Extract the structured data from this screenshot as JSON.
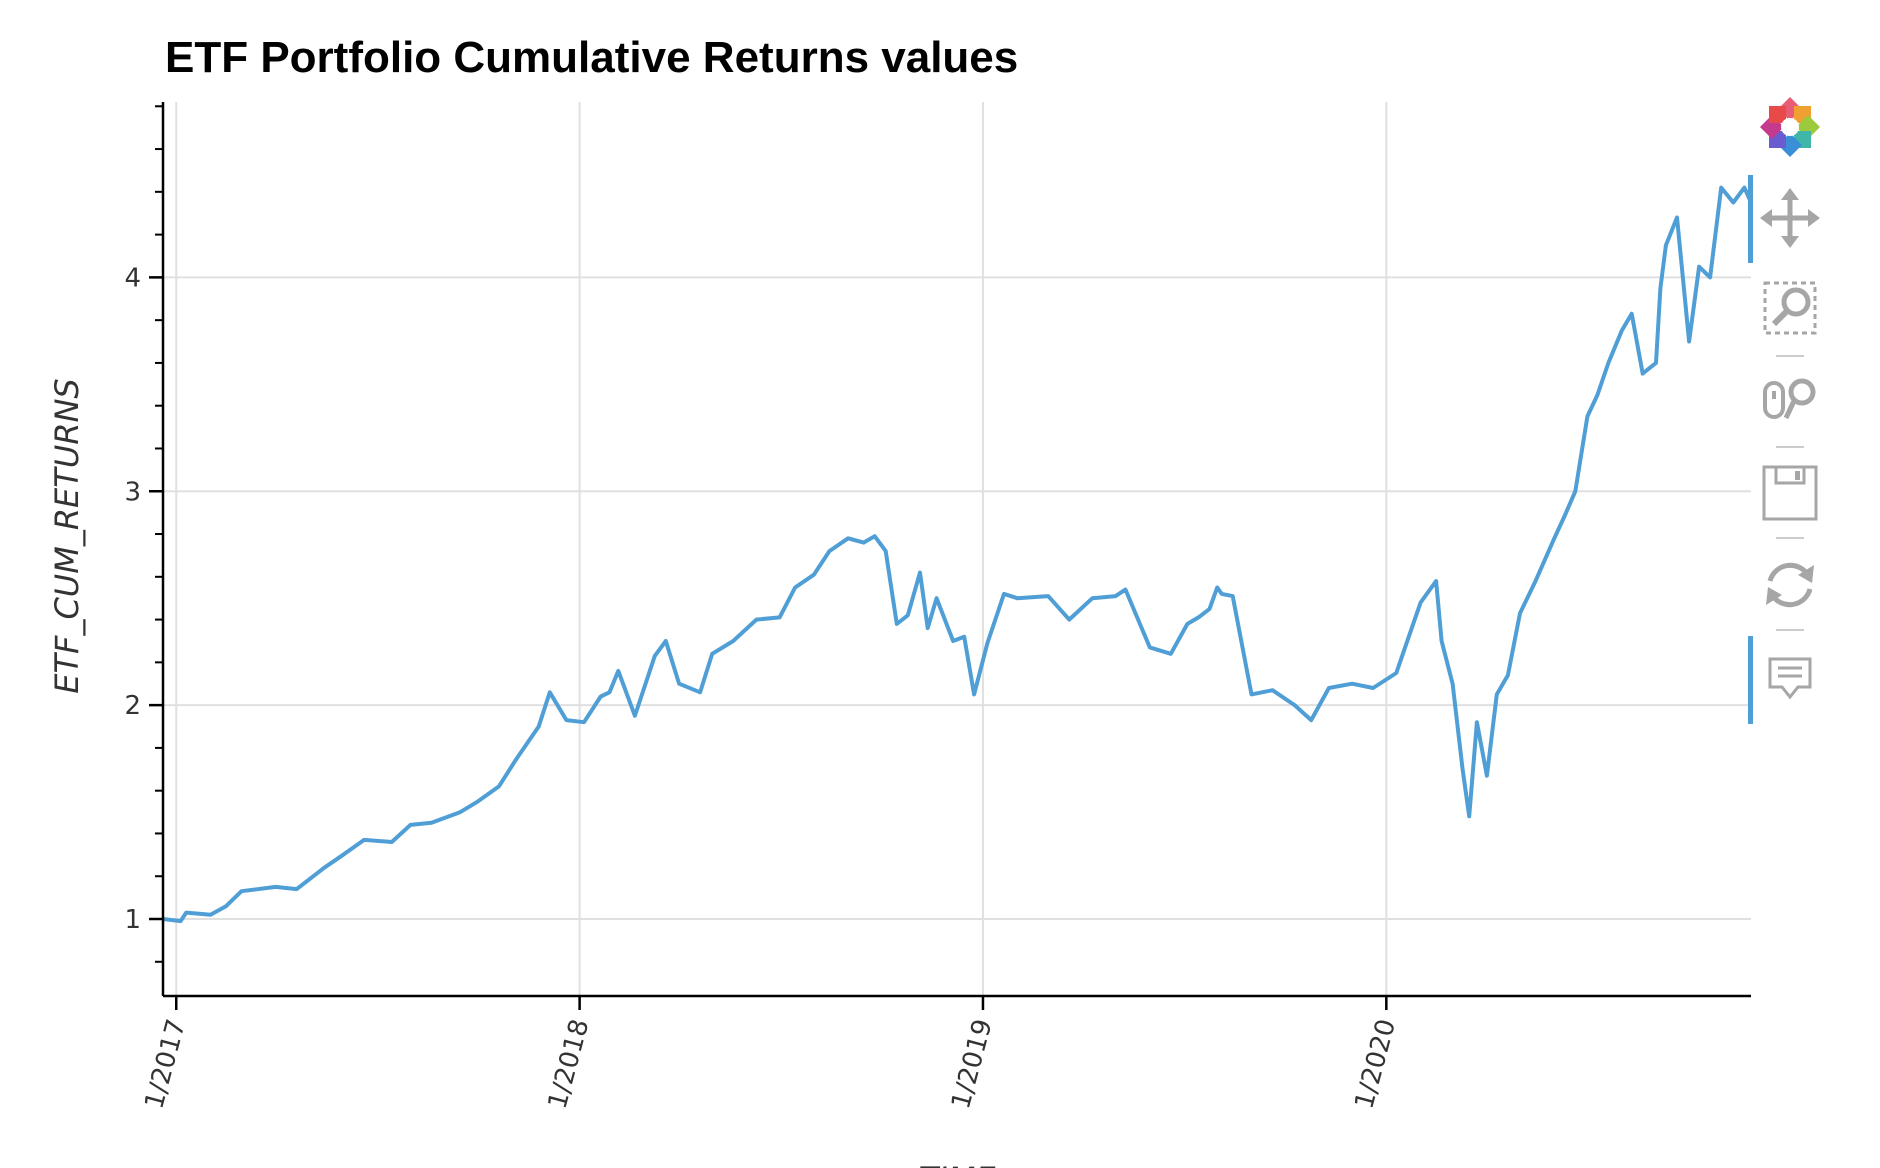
{
  "chart_data": {
    "type": "line",
    "title": "ETF Portfolio Cumulative Returns values",
    "xlabel": "TIME",
    "ylabel": "ETF_CUM_RETURNS",
    "xlim": [
      "2016-12-20",
      "2020-11-26"
    ],
    "ylim": [
      0.64,
      4.82
    ],
    "x_ticks": [
      {
        "date": "2017-01-01",
        "label": "1/2017"
      },
      {
        "date": "2018-01-01",
        "label": "1/2018"
      },
      {
        "date": "2019-01-01",
        "label": "1/2019"
      },
      {
        "date": "2020-01-01",
        "label": "1/2020"
      }
    ],
    "y_ticks": [
      1,
      2,
      3,
      4
    ],
    "grid": true,
    "legend": "none",
    "series": [
      {
        "color": "#4f9fd6",
        "x": [
          "2016-12-20",
          "2017-01-05",
          "2017-01-10",
          "2017-02-01",
          "2017-02-15",
          "2017-03-01",
          "2017-04-01",
          "2017-04-20",
          "2017-05-15",
          "2017-06-01",
          "2017-06-20",
          "2017-07-15",
          "2017-08-01",
          "2017-08-20",
          "2017-09-15",
          "2017-10-01",
          "2017-10-20",
          "2017-11-05",
          "2017-11-25",
          "2017-12-05",
          "2017-12-20",
          "2018-01-05",
          "2018-01-20",
          "2018-01-28",
          "2018-02-05",
          "2018-02-20",
          "2018-03-10",
          "2018-03-20",
          "2018-04-01",
          "2018-04-20",
          "2018-05-01",
          "2018-05-20",
          "2018-06-10",
          "2018-07-01",
          "2018-07-15",
          "2018-08-01",
          "2018-08-15",
          "2018-09-01",
          "2018-09-15",
          "2018-09-25",
          "2018-10-05",
          "2018-10-15",
          "2018-10-25",
          "2018-11-05",
          "2018-11-12",
          "2018-11-20",
          "2018-12-05",
          "2018-12-15",
          "2018-12-24",
          "2019-01-05",
          "2019-01-20",
          "2019-02-01",
          "2019-03-01",
          "2019-03-20",
          "2019-04-10",
          "2019-05-01",
          "2019-05-10",
          "2019-06-01",
          "2019-06-20",
          "2019-07-05",
          "2019-07-15",
          "2019-07-25",
          "2019-08-01",
          "2019-08-05",
          "2019-08-15",
          "2019-09-01",
          "2019-09-20",
          "2019-10-10",
          "2019-10-25",
          "2019-11-10",
          "2019-12-01",
          "2019-12-20",
          "2020-01-10",
          "2020-01-20",
          "2020-02-01",
          "2020-02-15",
          "2020-02-20",
          "2020-03-01",
          "2020-03-10",
          "2020-03-16",
          "2020-03-23",
          "2020-04-01",
          "2020-04-10",
          "2020-04-20",
          "2020-05-01",
          "2020-05-15",
          "2020-06-01",
          "2020-06-10",
          "2020-06-20",
          "2020-07-01",
          "2020-07-10",
          "2020-07-20",
          "2020-08-01",
          "2020-08-10",
          "2020-08-20",
          "2020-09-01",
          "2020-09-05",
          "2020-09-10",
          "2020-09-20",
          "2020-10-01",
          "2020-10-10",
          "2020-10-20",
          "2020-10-30",
          "2020-11-10",
          "2020-11-20",
          "2020-11-26"
        ],
        "y": [
          1.0,
          0.99,
          1.03,
          1.02,
          1.06,
          1.13,
          1.15,
          1.14,
          1.24,
          1.3,
          1.37,
          1.36,
          1.44,
          1.45,
          1.5,
          1.55,
          1.62,
          1.75,
          1.9,
          2.06,
          1.93,
          1.92,
          2.04,
          2.06,
          2.16,
          1.95,
          2.23,
          2.3,
          2.1,
          2.06,
          2.24,
          2.3,
          2.4,
          2.41,
          2.55,
          2.61,
          2.72,
          2.78,
          2.76,
          2.79,
          2.72,
          2.38,
          2.42,
          2.62,
          2.36,
          2.5,
          2.3,
          2.32,
          2.05,
          2.29,
          2.52,
          2.5,
          2.51,
          2.4,
          2.5,
          2.51,
          2.54,
          2.27,
          2.24,
          2.38,
          2.41,
          2.45,
          2.55,
          2.52,
          2.51,
          2.05,
          2.07,
          2.0,
          1.93,
          2.08,
          2.1,
          2.08,
          2.15,
          2.3,
          2.48,
          2.58,
          2.3,
          2.1,
          1.7,
          1.48,
          1.92,
          1.67,
          2.05,
          2.14,
          2.43,
          2.58,
          2.78,
          2.88,
          3.0,
          3.35,
          3.45,
          3.6,
          3.75,
          3.83,
          3.55,
          3.6,
          3.95,
          4.15,
          4.28,
          3.7,
          4.05,
          4.0,
          4.42,
          4.35,
          4.42,
          4.35
        ]
      }
    ]
  },
  "toolbar": {
    "logo": "bokeh-logo",
    "tools": [
      {
        "name": "pan-tool",
        "icon": "move-icon"
      },
      {
        "name": "box-zoom-tool",
        "icon": "box-zoom-icon"
      },
      {
        "name": "wheel-zoom-tool",
        "icon": "wheel-zoom-icon"
      },
      {
        "name": "save-tool",
        "icon": "save-icon"
      },
      {
        "name": "reset-tool",
        "icon": "reset-icon"
      },
      {
        "name": "hover-tool",
        "icon": "hover-icon"
      }
    ],
    "active_color": "#4f9fd6"
  }
}
